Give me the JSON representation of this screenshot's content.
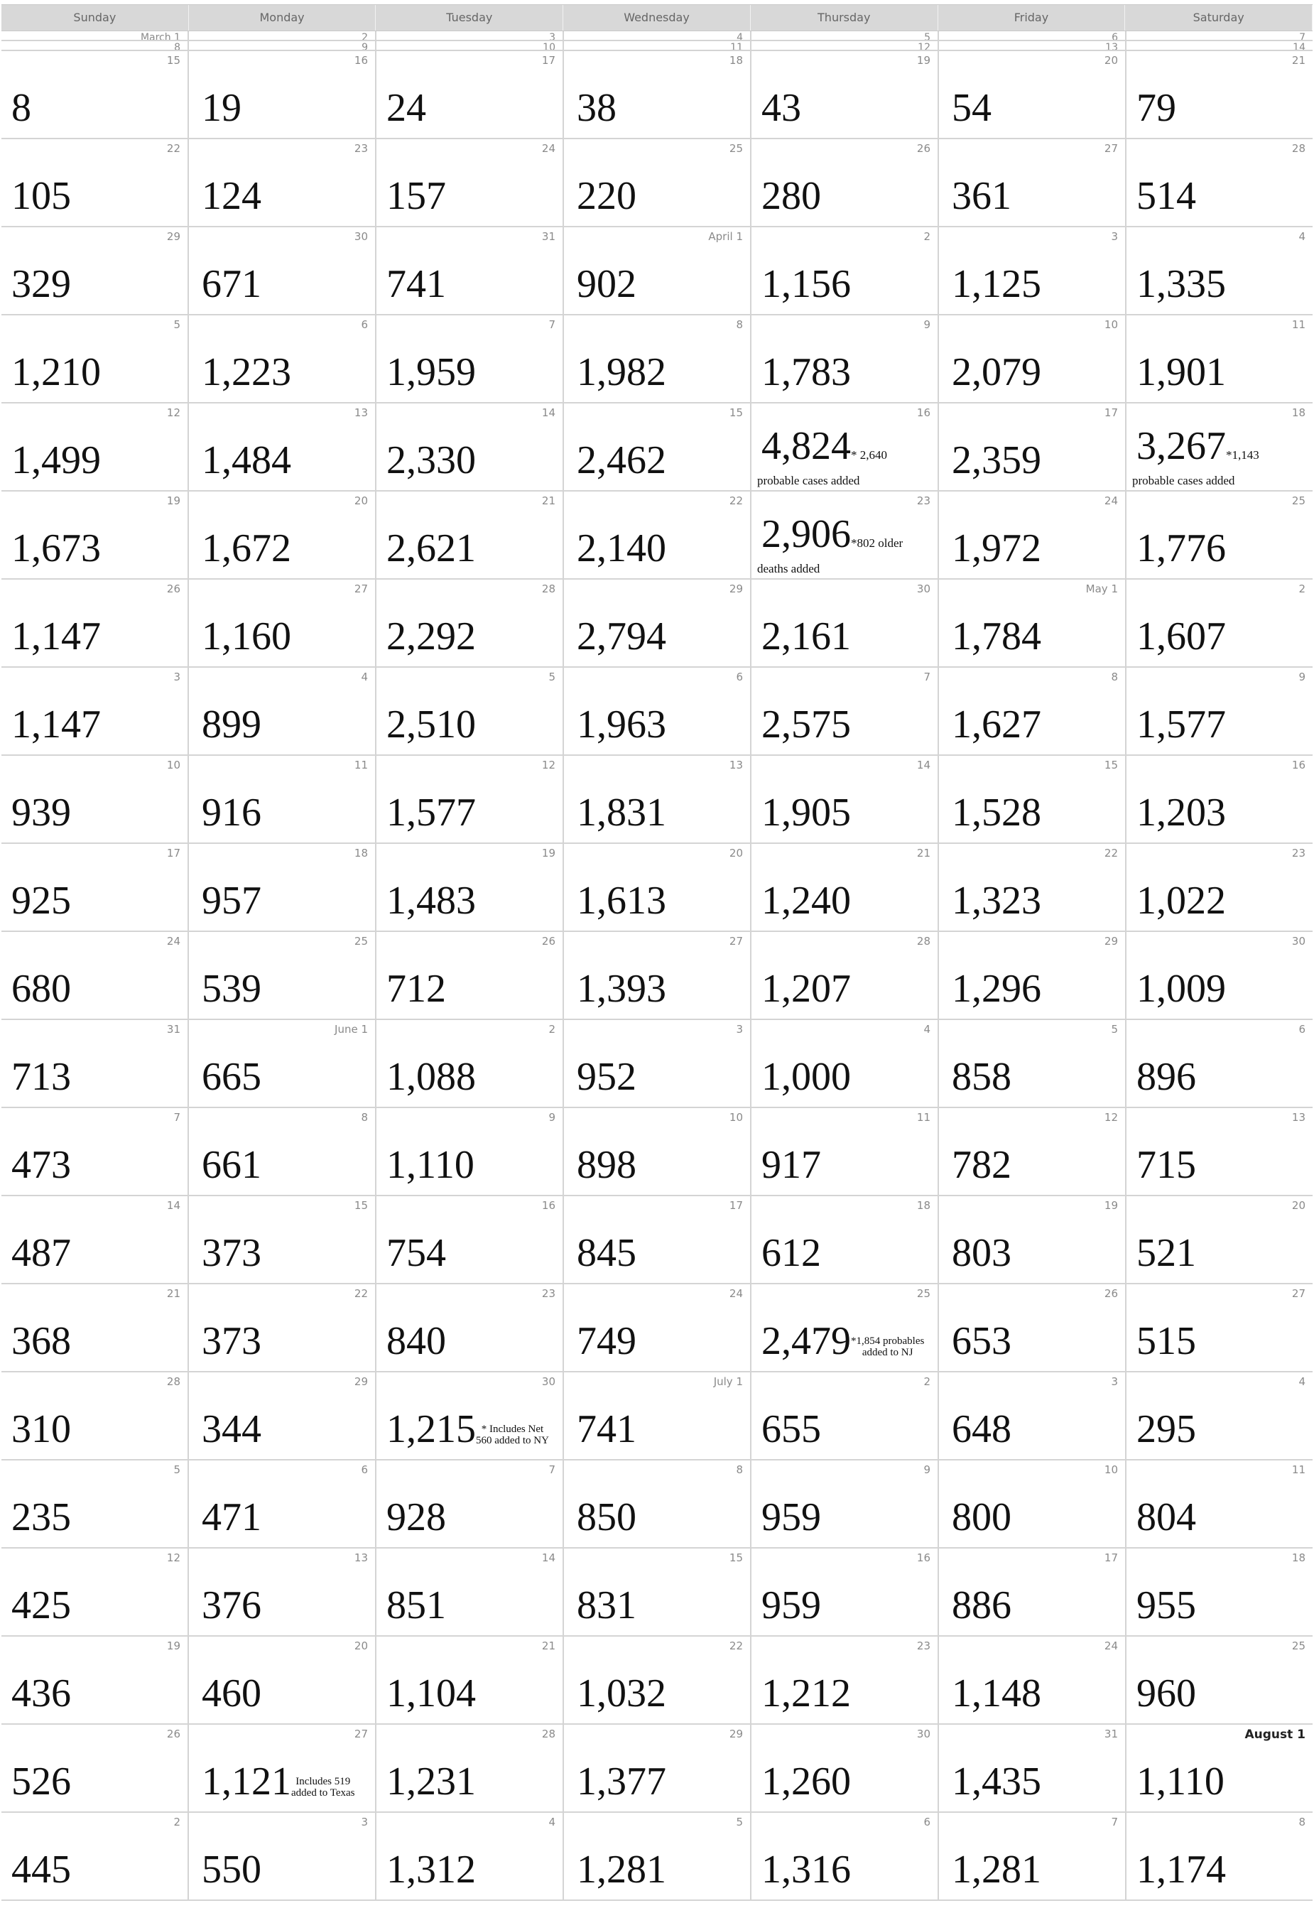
{
  "weekdays": [
    "Sunday",
    "Monday",
    "Tuesday",
    "Wednesday",
    "Thursday",
    "Friday",
    "Saturday"
  ],
  "weeks": [
    {
      "small": true,
      "cells": [
        {
          "d": "March 1"
        },
        {
          "d": "2"
        },
        {
          "d": "3"
        },
        {
          "d": "4"
        },
        {
          "d": "5"
        },
        {
          "d": "6"
        },
        {
          "d": "7"
        }
      ]
    },
    {
      "small": true,
      "cells": [
        {
          "d": "8"
        },
        {
          "d": "9"
        },
        {
          "d": "10"
        },
        {
          "d": "11"
        },
        {
          "d": "12"
        },
        {
          "d": "13"
        },
        {
          "d": "14"
        }
      ]
    },
    {
      "cells": [
        {
          "d": "15",
          "v": "8"
        },
        {
          "d": "16",
          "v": "19"
        },
        {
          "d": "17",
          "v": "24"
        },
        {
          "d": "18",
          "v": "38"
        },
        {
          "d": "19",
          "v": "43"
        },
        {
          "d": "20",
          "v": "54"
        },
        {
          "d": "21",
          "v": "79"
        }
      ]
    },
    {
      "cells": [
        {
          "d": "22",
          "v": "105"
        },
        {
          "d": "23",
          "v": "124"
        },
        {
          "d": "24",
          "v": "157"
        },
        {
          "d": "25",
          "v": "220"
        },
        {
          "d": "26",
          "v": "280"
        },
        {
          "d": "27",
          "v": "361"
        },
        {
          "d": "28",
          "v": "514"
        }
      ]
    },
    {
      "cells": [
        {
          "d": "29",
          "v": "329"
        },
        {
          "d": "30",
          "v": "671"
        },
        {
          "d": "31",
          "v": "741"
        },
        {
          "d": "April 1",
          "v": "902"
        },
        {
          "d": "2",
          "v": "1,156"
        },
        {
          "d": "3",
          "v": "1,125"
        },
        {
          "d": "4",
          "v": "1,335"
        }
      ]
    },
    {
      "cells": [
        {
          "d": "5",
          "v": "1,210"
        },
        {
          "d": "6",
          "v": "1,223"
        },
        {
          "d": "7",
          "v": "1,959"
        },
        {
          "d": "8",
          "v": "1,982"
        },
        {
          "d": "9",
          "v": "1,783"
        },
        {
          "d": "10",
          "v": "2,079"
        },
        {
          "d": "11",
          "v": "1,901"
        }
      ]
    },
    {
      "cells": [
        {
          "d": "12",
          "v": "1,499"
        },
        {
          "d": "13",
          "v": "1,484"
        },
        {
          "d": "14",
          "v": "2,330"
        },
        {
          "d": "15",
          "v": "2,462"
        },
        {
          "d": "16",
          "v": "4,824",
          "n": "* 2,640",
          "n2": "probable cases added"
        },
        {
          "d": "17",
          "v": "2,359"
        },
        {
          "d": "18",
          "v": "3,267",
          "n": "*1,143",
          "n2": "probable cases added"
        }
      ]
    },
    {
      "cells": [
        {
          "d": "19",
          "v": "1,673"
        },
        {
          "d": "20",
          "v": "1,672"
        },
        {
          "d": "21",
          "v": "2,621"
        },
        {
          "d": "22",
          "v": "2,140"
        },
        {
          "d": "23",
          "v": "2,906",
          "n": "*802 older",
          "n2": "deaths added"
        },
        {
          "d": "24",
          "v": "1,972"
        },
        {
          "d": "25",
          "v": "1,776"
        }
      ]
    },
    {
      "cells": [
        {
          "d": "26",
          "v": "1,147"
        },
        {
          "d": "27",
          "v": "1,160"
        },
        {
          "d": "28",
          "v": "2,292"
        },
        {
          "d": "29",
          "v": "2,794"
        },
        {
          "d": "30",
          "v": "2,161"
        },
        {
          "d": "May 1",
          "v": "1,784"
        },
        {
          "d": "2",
          "v": "1,607"
        }
      ]
    },
    {
      "cells": [
        {
          "d": "3",
          "v": "1,147"
        },
        {
          "d": "4",
          "v": "899"
        },
        {
          "d": "5",
          "v": "2,510"
        },
        {
          "d": "6",
          "v": "1,963"
        },
        {
          "d": "7",
          "v": "2,575"
        },
        {
          "d": "8",
          "v": "1,627"
        },
        {
          "d": "9",
          "v": "1,577"
        }
      ]
    },
    {
      "cells": [
        {
          "d": "10",
          "v": "939"
        },
        {
          "d": "11",
          "v": "916"
        },
        {
          "d": "12",
          "v": "1,577"
        },
        {
          "d": "13",
          "v": "1,831"
        },
        {
          "d": "14",
          "v": "1,905"
        },
        {
          "d": "15",
          "v": "1,528"
        },
        {
          "d": "16",
          "v": "1,203"
        }
      ]
    },
    {
      "cells": [
        {
          "d": "17",
          "v": "925"
        },
        {
          "d": "18",
          "v": "957"
        },
        {
          "d": "19",
          "v": "1,483"
        },
        {
          "d": "20",
          "v": "1,613"
        },
        {
          "d": "21",
          "v": "1,240"
        },
        {
          "d": "22",
          "v": "1,323"
        },
        {
          "d": "23",
          "v": "1,022"
        }
      ]
    },
    {
      "cells": [
        {
          "d": "24",
          "v": "680"
        },
        {
          "d": "25",
          "v": "539"
        },
        {
          "d": "26",
          "v": "712"
        },
        {
          "d": "27",
          "v": "1,393"
        },
        {
          "d": "28",
          "v": "1,207"
        },
        {
          "d": "29",
          "v": "1,296"
        },
        {
          "d": "30",
          "v": "1,009"
        }
      ]
    },
    {
      "cells": [
        {
          "d": "31",
          "v": "713"
        },
        {
          "d": "June 1",
          "v": "665"
        },
        {
          "d": "2",
          "v": "1,088"
        },
        {
          "d": "3",
          "v": "952"
        },
        {
          "d": "4",
          "v": "1,000"
        },
        {
          "d": "5",
          "v": "858"
        },
        {
          "d": "6",
          "v": "896"
        }
      ]
    },
    {
      "cells": [
        {
          "d": "7",
          "v": "473"
        },
        {
          "d": "8",
          "v": "661"
        },
        {
          "d": "9",
          "v": "1,110"
        },
        {
          "d": "10",
          "v": "898"
        },
        {
          "d": "11",
          "v": "917"
        },
        {
          "d": "12",
          "v": "782"
        },
        {
          "d": "13",
          "v": "715"
        }
      ]
    },
    {
      "cells": [
        {
          "d": "14",
          "v": "487"
        },
        {
          "d": "15",
          "v": "373"
        },
        {
          "d": "16",
          "v": "754"
        },
        {
          "d": "17",
          "v": "845"
        },
        {
          "d": "18",
          "v": "612"
        },
        {
          "d": "19",
          "v": "803"
        },
        {
          "d": "20",
          "v": "521"
        }
      ]
    },
    {
      "cells": [
        {
          "d": "21",
          "v": "368"
        },
        {
          "d": "22",
          "v": "373"
        },
        {
          "d": "23",
          "v": "840"
        },
        {
          "d": "24",
          "v": "749"
        },
        {
          "d": "25",
          "v": "2,479",
          "n": "*1,854 probables",
          "n2": "added to NJ",
          "inline": true
        },
        {
          "d": "26",
          "v": "653"
        },
        {
          "d": "27",
          "v": "515"
        }
      ]
    },
    {
      "cells": [
        {
          "d": "28",
          "v": "310"
        },
        {
          "d": "29",
          "v": "344"
        },
        {
          "d": "30",
          "v": "1,215",
          "n": "* Includes Net",
          "n2": "560 added to NY",
          "inline": true
        },
        {
          "d": "July 1",
          "v": "741"
        },
        {
          "d": "2",
          "v": "655"
        },
        {
          "d": "3",
          "v": "648"
        },
        {
          "d": "4",
          "v": "295"
        }
      ]
    },
    {
      "cells": [
        {
          "d": "5",
          "v": "235"
        },
        {
          "d": "6",
          "v": "471"
        },
        {
          "d": "7",
          "v": "928"
        },
        {
          "d": "8",
          "v": "850"
        },
        {
          "d": "9",
          "v": "959"
        },
        {
          "d": "10",
          "v": "800"
        },
        {
          "d": "11",
          "v": "804"
        }
      ]
    },
    {
      "cells": [
        {
          "d": "12",
          "v": "425"
        },
        {
          "d": "13",
          "v": "376"
        },
        {
          "d": "14",
          "v": "851"
        },
        {
          "d": "15",
          "v": "831"
        },
        {
          "d": "16",
          "v": "959"
        },
        {
          "d": "17",
          "v": "886"
        },
        {
          "d": "18",
          "v": "955"
        }
      ]
    },
    {
      "cells": [
        {
          "d": "19",
          "v": "436"
        },
        {
          "d": "20",
          "v": "460"
        },
        {
          "d": "21",
          "v": "1,104"
        },
        {
          "d": "22",
          "v": "1,032"
        },
        {
          "d": "23",
          "v": "1,212"
        },
        {
          "d": "24",
          "v": "1,148"
        },
        {
          "d": "25",
          "v": "960"
        }
      ]
    },
    {
      "cells": [
        {
          "d": "26",
          "v": "526"
        },
        {
          "d": "27",
          "v": "1,121",
          "n": "Includes 519",
          "n2": "added to Texas",
          "inline": true
        },
        {
          "d": "28",
          "v": "1,231"
        },
        {
          "d": "29",
          "v": "1,377"
        },
        {
          "d": "30",
          "v": "1,260"
        },
        {
          "d": "31",
          "v": "1,435"
        },
        {
          "d": "August 1",
          "v": "1,110",
          "bold": true
        }
      ]
    },
    {
      "cells": [
        {
          "d": "2",
          "v": "445"
        },
        {
          "d": "3",
          "v": "550"
        },
        {
          "d": "4",
          "v": "1,312"
        },
        {
          "d": "5",
          "v": "1,281"
        },
        {
          "d": "6",
          "v": "1,316"
        },
        {
          "d": "7",
          "v": "1,281"
        },
        {
          "d": "8",
          "v": "1,174"
        }
      ]
    }
  ]
}
